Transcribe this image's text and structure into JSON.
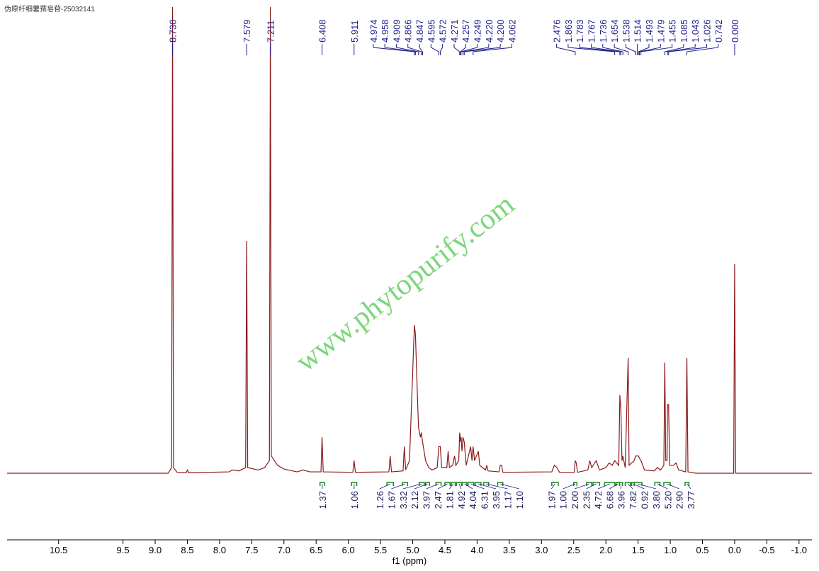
{
  "chart_data": {
    "type": "line",
    "title": "伪原纤细薯蓣皂苷-25032141",
    "watermark": "www.phytopurify.com",
    "xlabel": "f1 (ppm)",
    "xlim": [
      11.3,
      -1.2
    ],
    "ylim": [
      0,
      100
    ],
    "color": "#8b1a1a",
    "xticks": [
      10.5,
      9.5,
      {
        "value": 9,
        "label": "9.0"
      },
      8.5,
      {
        "value": 8,
        "label": "8.0"
      },
      7.5,
      {
        "value": 7,
        "label": "7.0"
      },
      6.5,
      {
        "value": 6,
        "label": "6.0"
      },
      5.5,
      {
        "value": 5,
        "label": "5.0"
      },
      4.5,
      {
        "value": 4,
        "label": "4.0"
      },
      3.5,
      {
        "value": 3,
        "label": "3.0"
      },
      2.5,
      {
        "value": 2,
        "label": "2.0"
      },
      1.5,
      {
        "value": 1,
        "label": "1.0"
      },
      0.5,
      {
        "value": 0,
        "label": "0.0"
      },
      -0.5,
      {
        "value": -1,
        "label": "-1.0"
      }
    ],
    "x": [
      11.3,
      8.8,
      8.745,
      8.73,
      8.715,
      8.66,
      8.52,
      8.5,
      8.48,
      7.85,
      7.8,
      7.7,
      7.595,
      7.579,
      7.563,
      7.4,
      7.3,
      7.226,
      7.211,
      7.196,
      7.1,
      7.0,
      6.8,
      6.7,
      6.6,
      6.425,
      6.408,
      6.39,
      5.93,
      5.911,
      5.89,
      5.37,
      5.35,
      5.33,
      5.15,
      5.13,
      5.11,
      5.05,
      4.974,
      4.958,
      4.92,
      4.909,
      4.88,
      4.866,
      4.847,
      4.8,
      4.75,
      4.7,
      4.62,
      4.595,
      4.572,
      4.55,
      4.47,
      4.45,
      4.43,
      4.38,
      4.35,
      4.33,
      4.285,
      4.271,
      4.257,
      4.249,
      4.235,
      4.22,
      4.2,
      4.17,
      4.1,
      4.08,
      4.062,
      4.04,
      3.98,
      3.96,
      3.87,
      3.85,
      3.83,
      3.66,
      3.64,
      3.62,
      3.6,
      2.84,
      2.8,
      2.76,
      2.72,
      2.49,
      2.476,
      2.46,
      2.44,
      2.28,
      2.25,
      2.22,
      2.15,
      2.1,
      2.0,
      1.95,
      1.9,
      1.863,
      1.8,
      1.783,
      1.767,
      1.75,
      1.736,
      1.7,
      1.654,
      1.64,
      1.56,
      1.538,
      1.514,
      1.493,
      1.479,
      1.455,
      1.4,
      1.25,
      1.2,
      1.15,
      1.1,
      1.085,
      1.07,
      1.05,
      1.043,
      1.026,
      1.01,
      0.95,
      0.91,
      0.87,
      0.76,
      0.742,
      0.725,
      0.6,
      0.015,
      0.0,
      -0.015,
      -1.2
    ],
    "values": [
      0.3,
      0.3,
      1.5,
      100,
      1.5,
      0.5,
      0.4,
      1,
      0.4,
      0.6,
      1,
      0.8,
      1.5,
      50,
      1.5,
      1,
      1.5,
      3,
      100,
      4,
      2,
      1.2,
      0.6,
      1,
      0.6,
      0.6,
      8,
      0.6,
      0.5,
      3,
      0.5,
      0.6,
      4,
      0.6,
      0.8,
      6,
      1,
      3,
      32,
      30,
      14,
      10,
      8,
      9,
      7,
      3,
      1.5,
      1,
      1.5,
      6,
      6,
      1.5,
      1.5,
      5,
      1.5,
      2,
      4,
      2,
      3,
      9,
      7,
      8,
      5,
      8,
      7,
      2,
      6,
      3,
      6,
      3,
      5,
      2,
      1,
      2,
      0.8,
      0.6,
      2,
      2,
      0.5,
      0.6,
      2,
      1.5,
      0.5,
      0.5,
      3,
      2.5,
      0.5,
      1,
      3,
      1.5,
      3,
      1,
      1.5,
      2.5,
      2,
      3,
      2,
      17,
      14,
      3,
      4,
      1.5,
      25,
      2,
      3,
      4,
      4,
      4,
      3.5,
      3,
      1,
      0.8,
      1.5,
      1,
      2,
      24,
      3,
      3,
      15,
      15,
      2,
      2,
      2.5,
      1,
      0.6,
      25,
      0.6,
      0.3,
      0.3,
      45,
      0.3,
      0.3
    ],
    "peak_labels": [
      {
        "value": 8.73,
        "label": "8.730"
      },
      7.579,
      7.211,
      6.408,
      5.911,
      4.974,
      4.958,
      4.909,
      4.866,
      4.847,
      4.595,
      4.572,
      4.271,
      4.257,
      4.249,
      {
        "value": 4.22,
        "label": "4.220"
      },
      {
        "value": 4.2,
        "label": "4.200"
      },
      4.062,
      2.476,
      1.863,
      1.783,
      1.767,
      1.736,
      1.654,
      1.538,
      1.514,
      1.493,
      1.479,
      1.455,
      1.085,
      1.043,
      1.026,
      0.742,
      {
        "value": 0,
        "label": "0.000"
      }
    ],
    "integrals": [
      {
        "range": [
          6.44,
          6.37
        ],
        "value": 1.37
      },
      {
        "range": [
          5.95,
          5.87
        ],
        "value": 1.06
      },
      {
        "range": [
          5.4,
          5.3
        ],
        "value": 1.26
      },
      {
        "range": [
          5.16,
          5.08
        ],
        "value": 1.67
      },
      {
        "range": [
          4.9,
          4.82
        ],
        "value": 3.32
      },
      {
        "range": [
          4.8,
          4.74
        ],
        "value": 2.12
      },
      {
        "range": [
          4.64,
          4.56
        ],
        "value": 3.97
      },
      {
        "range": [
          4.5,
          4.42
        ],
        "value": 2.47
      },
      {
        "range": [
          4.4,
          4.34
        ],
        "value": 1.81
      },
      {
        "range": [
          4.32,
          4.24
        ],
        "value": 4.92
      },
      {
        "range": [
          4.23,
          4.16
        ],
        "value": 4.04
      },
      {
        "range": [
          4.14,
          4.05
        ],
        "value": 6.31
      },
      {
        "range": [
          4.03,
          3.94
        ],
        "value": 3.95
      },
      {
        "range": [
          3.9,
          3.82
        ],
        "value": 1.17
      },
      {
        "range": [
          3.68,
          3.6
        ],
        "value": {
          "value": 1.1,
          "label": "1.10"
        }
      },
      {
        "range": [
          2.84,
          2.74
        ],
        "value": 1.97
      },
      {
        "range": [
          2.5,
          2.45
        ],
        "value": {
          "value": 1,
          "label": "1.00"
        }
      },
      {
        "range": [
          2.3,
          2.22
        ],
        "value": {
          "value": 2,
          "label": "2.00"
        }
      },
      {
        "range": [
          2.2,
          2.1
        ],
        "value": 2.35
      },
      {
        "range": [
          2.02,
          1.86
        ],
        "value": 4.72
      },
      {
        "range": [
          1.84,
          1.79
        ],
        "value": 6.68
      },
      {
        "range": [
          1.79,
          1.74
        ],
        "value": 3.96
      },
      {
        "range": [
          1.7,
          1.62
        ],
        "value": 7.82
      },
      {
        "range": [
          1.6,
          1.56
        ],
        "value": 0.92
      },
      {
        "range": [
          1.56,
          1.44
        ],
        "value": {
          "value": 3.8,
          "label": "3.80"
        }
      },
      {
        "range": [
          1.24,
          1.16
        ],
        "value": {
          "value": 5.2,
          "label": "5.20"
        }
      },
      {
        "range": [
          1.1,
          1.0
        ],
        "value": {
          "value": 2.9,
          "label": "2.90"
        }
      },
      {
        "range": [
          0.77,
          0.71
        ],
        "value": 3.77
      }
    ]
  }
}
